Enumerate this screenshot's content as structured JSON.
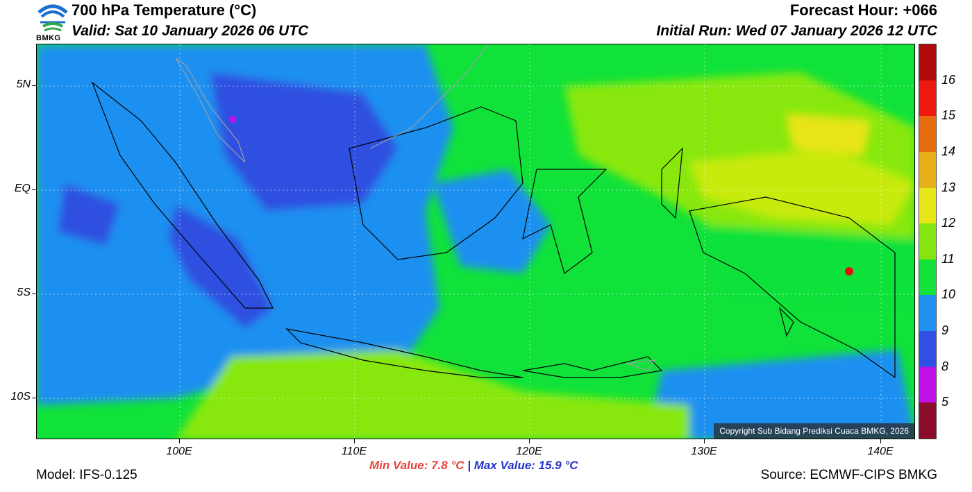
{
  "header": {
    "title": "700 hPa Temperature (°C)",
    "valid": "Valid: Sat 10 January 2026 06 UTC",
    "forecast_hour": "Forecast Hour: +066",
    "initial_run": "Initial Run: Wed 07 January 2026 12 UTC"
  },
  "logo": {
    "text": "BMKG",
    "icon": "bmkg-logo-icon"
  },
  "map": {
    "lat_labels": [
      "5N",
      "EQ",
      "5S",
      "10S"
    ],
    "lon_labels": [
      "100E",
      "110E",
      "120E",
      "130E",
      "140E"
    ],
    "copyright": "Copyright Sub Bidang Prediksi Cuaca BMKG, 2026",
    "region_colors": {
      "deep_blue": "#2e4fe0",
      "blue": "#1e90f0",
      "green": "#10e23a",
      "light_green": "#88e810",
      "yellow_green": "#c8ea10",
      "yellow": "#e8e416",
      "hotspot": "#e01010"
    }
  },
  "colorbar": {
    "labels": [
      "5",
      "8",
      "9",
      "10",
      "11",
      "12",
      "13",
      "14",
      "15",
      "16"
    ],
    "colors": [
      "#8b0b2a",
      "#c010e8",
      "#3050e8",
      "#1e90f0",
      "#12e23a",
      "#86e510",
      "#e6e618",
      "#e8b018",
      "#e86c10",
      "#ee1a10",
      "#b00a0a"
    ]
  },
  "footer": {
    "model": "Model: IFS-0.125",
    "min_value": "Min Value: 7.8 °C",
    "separator": "|",
    "max_value": "Max Value: 15.9 °C",
    "source": "Source: ECMWF-CIPS BMKG"
  }
}
